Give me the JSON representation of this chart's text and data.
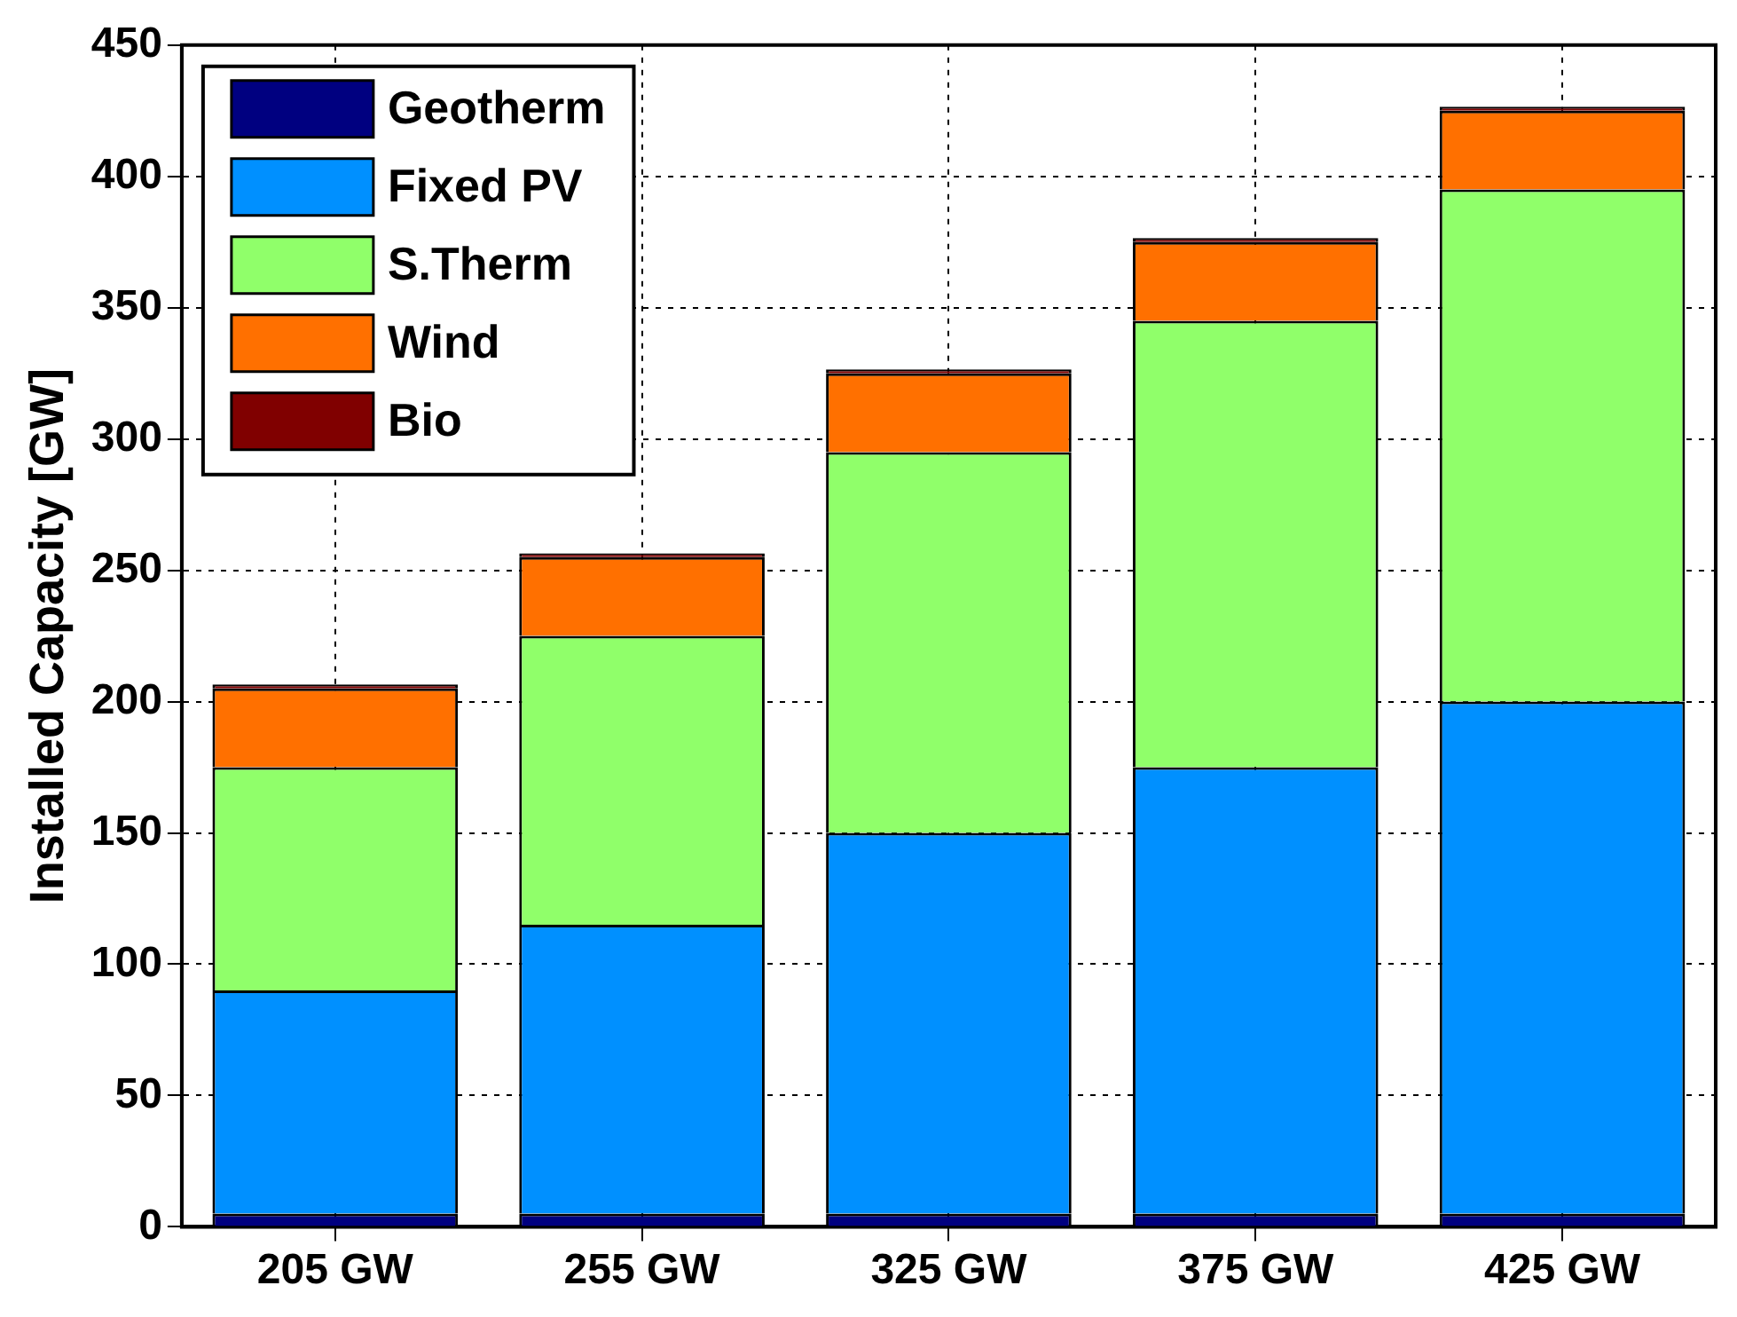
{
  "chart_data": {
    "type": "bar",
    "stacked": true,
    "ylabel": "Installed Capacity [GW]",
    "categories": [
      "205 GW",
      "255 GW",
      "325 GW",
      "375 GW",
      "425 GW"
    ],
    "series": [
      {
        "name": "Geotherm",
        "color": "#000080",
        "values": [
          5,
          5,
          5,
          5,
          5
        ]
      },
      {
        "name": "Fixed PV",
        "color": "#0090ff",
        "values": [
          85,
          110,
          145,
          170,
          195
        ]
      },
      {
        "name": "S.Therm",
        "color": "#90ff6a",
        "values": [
          85,
          110,
          145,
          170,
          195
        ]
      },
      {
        "name": "Wind",
        "color": "#ff7000",
        "values": [
          30,
          30,
          30,
          30,
          30
        ]
      },
      {
        "name": "Bio",
        "color": "#800000",
        "values": [
          1.5,
          1.5,
          1.5,
          1.5,
          1.5
        ]
      }
    ],
    "ylim": [
      0,
      450
    ],
    "yticks": [
      0,
      50,
      100,
      150,
      200,
      250,
      300,
      350,
      400,
      450
    ],
    "grid": true,
    "legend": "top left"
  }
}
